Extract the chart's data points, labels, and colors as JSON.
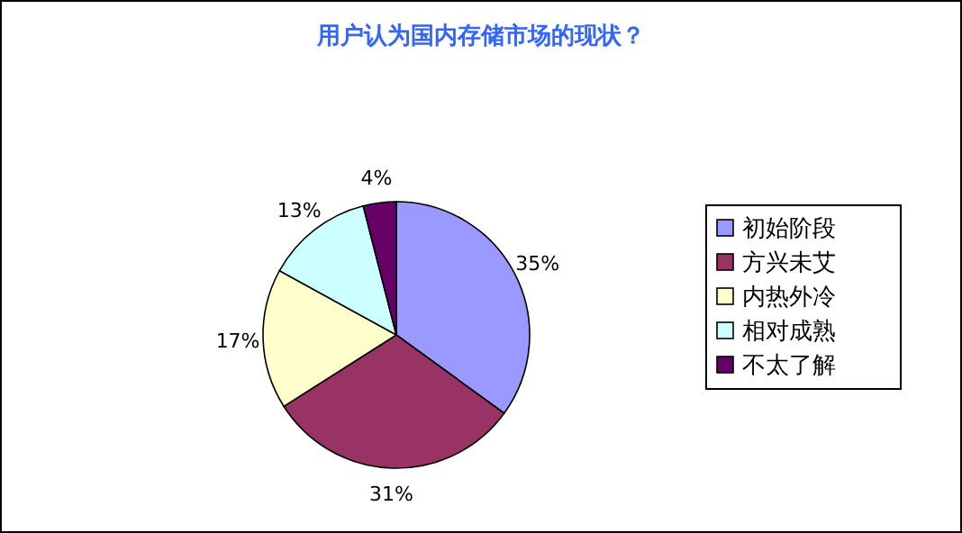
{
  "chart_data": {
    "type": "pie",
    "title": "用户认为国内存储市场的现状？",
    "categories": [
      "初始阶段",
      "方兴未艾",
      "内热外冷",
      "相对成熟",
      "不太了解"
    ],
    "values": [
      35,
      31,
      17,
      13,
      4
    ],
    "value_labels": [
      "35%",
      "31%",
      "17%",
      "13%",
      "4%"
    ],
    "colors": [
      "#9999ff",
      "#993366",
      "#ffffcc",
      "#ccffff",
      "#660066"
    ],
    "legend": "right"
  }
}
